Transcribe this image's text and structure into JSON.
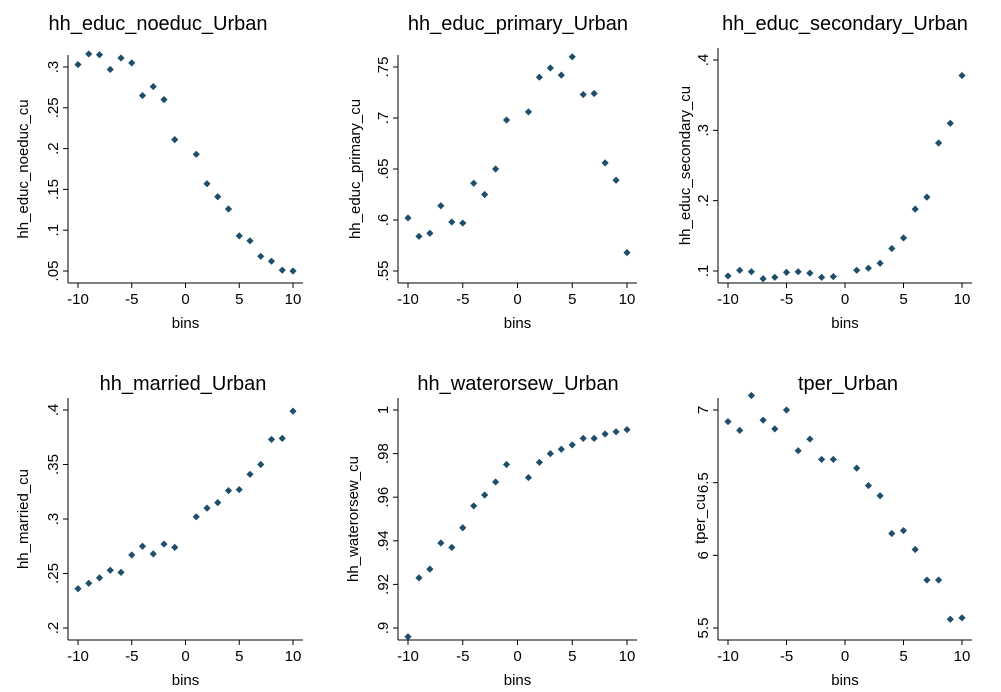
{
  "figure": {
    "background": "#ffffff",
    "marker_color": "#1f4e6b"
  },
  "chart_data": [
    {
      "type": "scatter",
      "title": "hh_educ_noeduc_Urban",
      "xlabel": "bins",
      "ylabel": "hh_educ_noeduc_cu",
      "xlim": [
        -10,
        10
      ],
      "ylim": [
        0.05,
        0.3
      ],
      "xticks": [
        -10,
        -5,
        0,
        5,
        10
      ],
      "yticks": [
        0.05,
        0.1,
        0.15,
        0.2,
        0.25,
        0.3
      ],
      "yticklabels": [
        ".05",
        ".1",
        ".15",
        ".2",
        ".25",
        ".3"
      ],
      "grid": false,
      "x": [
        -10,
        -9,
        -8,
        -7,
        -6,
        -5,
        -4,
        -3,
        -2,
        -1,
        1,
        2,
        3,
        4,
        5,
        6,
        7,
        8,
        9,
        10
      ],
      "y": [
        0.303,
        0.316,
        0.315,
        0.297,
        0.311,
        0.305,
        0.265,
        0.276,
        0.26,
        0.211,
        0.193,
        0.157,
        0.141,
        0.126,
        0.093,
        0.087,
        0.068,
        0.062,
        0.051,
        0.05
      ]
    },
    {
      "type": "scatter",
      "title": "hh_educ_primary_Urban",
      "xlabel": "bins",
      "ylabel": "hh_educ_primary_cu",
      "xlim": [
        -10,
        10
      ],
      "ylim": [
        0.55,
        0.75
      ],
      "xticks": [
        -10,
        -5,
        0,
        5,
        10
      ],
      "yticks": [
        0.55,
        0.6,
        0.65,
        0.7,
        0.75
      ],
      "yticklabels": [
        ".55",
        ".6",
        ".65",
        ".7",
        ".75"
      ],
      "grid": false,
      "x": [
        -10,
        -9,
        -8,
        -7,
        -6,
        -5,
        -4,
        -3,
        -2,
        -1,
        1,
        2,
        3,
        4,
        5,
        6,
        7,
        8,
        9,
        10
      ],
      "y": [
        0.602,
        0.584,
        0.587,
        0.614,
        0.598,
        0.597,
        0.636,
        0.625,
        0.65,
        0.698,
        0.706,
        0.74,
        0.749,
        0.742,
        0.76,
        0.723,
        0.724,
        0.656,
        0.639,
        0.568
      ]
    },
    {
      "type": "scatter",
      "title": "hh_educ_secondary_Urban",
      "xlabel": "bins",
      "ylabel": "hh_educ_secondary_cu",
      "xlim": [
        -10,
        10
      ],
      "ylim": [
        0.1,
        0.4
      ],
      "xticks": [
        -10,
        -5,
        0,
        5,
        10
      ],
      "yticks": [
        0.1,
        0.2,
        0.3,
        0.4
      ],
      "yticklabels": [
        ".1",
        ".2",
        ".3",
        ".4"
      ],
      "grid": false,
      "x": [
        -10,
        -9,
        -8,
        -7,
        -6,
        -5,
        -4,
        -3,
        -2,
        -1,
        1,
        2,
        3,
        4,
        5,
        6,
        7,
        8,
        9,
        10
      ],
      "y": [
        0.093,
        0.101,
        0.099,
        0.089,
        0.091,
        0.098,
        0.099,
        0.097,
        0.091,
        0.092,
        0.101,
        0.104,
        0.111,
        0.132,
        0.147,
        0.188,
        0.205,
        0.282,
        0.31,
        0.378
      ]
    },
    {
      "type": "scatter",
      "title": "hh_married_Urban",
      "xlabel": "bins",
      "ylabel": "hh_married_cu",
      "xlim": [
        -10,
        10
      ],
      "ylim": [
        0.2,
        0.4
      ],
      "xticks": [
        -10,
        -5,
        0,
        5,
        10
      ],
      "yticks": [
        0.2,
        0.25,
        0.3,
        0.35,
        0.4
      ],
      "yticklabels": [
        ".2",
        ".25",
        ".3",
        ".35",
        ".4"
      ],
      "grid": false,
      "x": [
        -10,
        -9,
        -8,
        -7,
        -6,
        -5,
        -4,
        -3,
        -2,
        -1,
        1,
        2,
        3,
        4,
        5,
        6,
        7,
        8,
        9,
        10
      ],
      "y": [
        0.236,
        0.241,
        0.246,
        0.253,
        0.251,
        0.267,
        0.275,
        0.268,
        0.277,
        0.274,
        0.302,
        0.31,
        0.315,
        0.326,
        0.327,
        0.341,
        0.35,
        0.373,
        0.374,
        0.399
      ]
    },
    {
      "type": "scatter",
      "title": "hh_waterorsew_Urban",
      "xlabel": "bins",
      "ylabel": "hh_waterorsew_cu",
      "xlim": [
        -10,
        10
      ],
      "ylim": [
        0.9,
        1.0
      ],
      "xticks": [
        -10,
        -5,
        0,
        5,
        10
      ],
      "yticks": [
        0.9,
        0.92,
        0.94,
        0.96,
        0.98,
        1.0
      ],
      "yticklabels": [
        ".9",
        ".92",
        ".94",
        ".96",
        ".98",
        "1"
      ],
      "grid": false,
      "x": [
        -10,
        -9,
        -8,
        -7,
        -6,
        -5,
        -4,
        -3,
        -2,
        -1,
        1,
        2,
        3,
        4,
        5,
        6,
        7,
        8,
        9,
        10
      ],
      "y": [
        0.896,
        0.923,
        0.927,
        0.939,
        0.937,
        0.946,
        0.956,
        0.961,
        0.967,
        0.975,
        0.969,
        0.976,
        0.98,
        0.982,
        0.984,
        0.987,
        0.987,
        0.989,
        0.99,
        0.991
      ]
    },
    {
      "type": "scatter",
      "title": "tper_Urban",
      "xlabel": "bins",
      "ylabel": "tper_cu",
      "xlim": [
        -10,
        10
      ],
      "ylim": [
        5.5,
        7.0
      ],
      "xticks": [
        -10,
        -5,
        0,
        5,
        10
      ],
      "yticks": [
        5.5,
        6.0,
        6.5,
        7.0
      ],
      "yticklabels": [
        "5.5",
        "6",
        "6.5",
        "7"
      ],
      "grid": false,
      "x": [
        -10,
        -9,
        -8,
        -7,
        -6,
        -5,
        -4,
        -3,
        -2,
        -1,
        1,
        2,
        3,
        4,
        5,
        6,
        7,
        8,
        9,
        10
      ],
      "y": [
        6.92,
        6.86,
        7.1,
        6.93,
        6.87,
        7.0,
        6.72,
        6.8,
        6.66,
        6.66,
        6.6,
        6.48,
        6.41,
        6.15,
        6.17,
        6.04,
        5.83,
        5.83,
        5.56,
        5.57
      ]
    }
  ]
}
